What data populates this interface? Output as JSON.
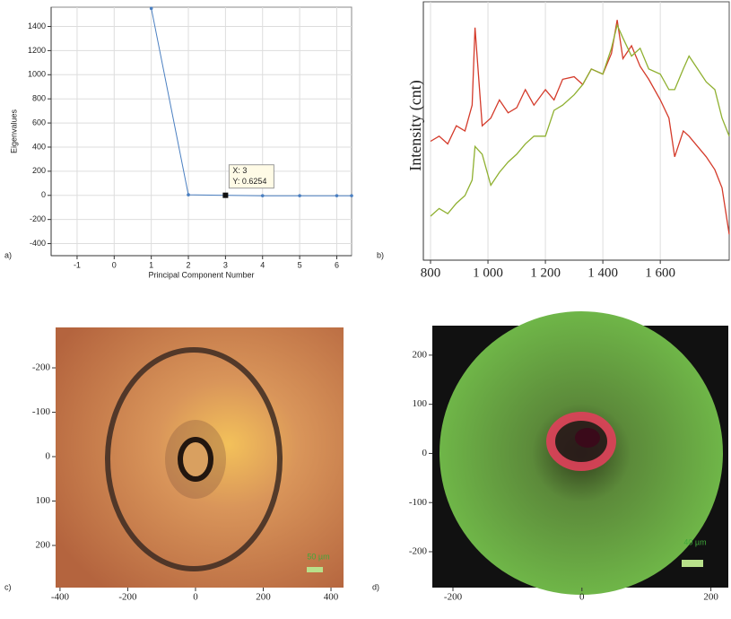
{
  "chart_data": [
    {
      "type": "line",
      "panel_label": "a)",
      "x_label": "Principal Component Number",
      "y_label": "Eigenvalues",
      "x": [
        1,
        2,
        3,
        4,
        5,
        6,
        6.4
      ],
      "series": [
        {
          "color": "#4a7fc1",
          "values": [
            1550,
            5,
            0.6254,
            -3,
            -3,
            -3,
            -3
          ]
        }
      ],
      "xlim": [
        -1.7,
        6.4
      ],
      "ylim": [
        -500,
        1560
      ],
      "xticks": [
        -1,
        0,
        1,
        2,
        3,
        4,
        5,
        6
      ],
      "yticks": [
        -400,
        -200,
        0,
        200,
        400,
        600,
        800,
        1000,
        1200,
        1400
      ],
      "grid": true,
      "markers": true,
      "tooltip": {
        "x_text": "X: 3",
        "y_text": "Y: 0.6254"
      }
    },
    {
      "type": "line",
      "panel_label": "b)",
      "y_label": "Intensity (cnt)",
      "x": [
        800,
        830,
        860,
        890,
        920,
        945,
        955,
        980,
        1010,
        1040,
        1070,
        1100,
        1130,
        1160,
        1200,
        1230,
        1260,
        1300,
        1330,
        1360,
        1400,
        1430,
        1450,
        1470,
        1500,
        1530,
        1560,
        1600,
        1630,
        1650,
        1680,
        1700,
        1730,
        1760,
        1790,
        1815,
        1840
      ],
      "series": [
        {
          "color": "#d43a2a",
          "values": [
            46,
            48,
            45,
            52,
            50,
            60,
            90,
            52,
            55,
            62,
            57,
            59,
            66,
            60,
            66,
            62,
            70,
            71,
            68,
            74,
            72,
            80,
            93,
            78,
            83,
            75,
            70,
            62,
            55,
            40,
            50,
            48,
            44,
            40,
            35,
            28,
            10
          ]
        },
        {
          "color": "#8fb030",
          "values": [
            17,
            20,
            18,
            22,
            25,
            31,
            44,
            41,
            29,
            34,
            38,
            41,
            45,
            48,
            48,
            58,
            60,
            64,
            68,
            74,
            72,
            82,
            91,
            86,
            79,
            82,
            74,
            72,
            66,
            66,
            74,
            79,
            74,
            69,
            66,
            55,
            48
          ]
        }
      ],
      "xlim": [
        775,
        1840
      ],
      "ylim": [
        0,
        100
      ],
      "xticks": [
        800,
        {
          "value": 1000,
          "label": "1 000"
        },
        {
          "value": 1200,
          "label": "1 200"
        },
        {
          "value": 1400,
          "label": "1 400"
        },
        {
          "value": 1600,
          "label": "1 600"
        }
      ],
      "grid": true,
      "markers": false
    },
    {
      "type": "image",
      "panel_label": "c)",
      "scale_bar": "50 µm",
      "xlim": [
        -413,
        437
      ],
      "ylim": [
        295,
        -291
      ],
      "xticks": [
        -400,
        -200,
        0,
        200,
        400
      ],
      "yticks": [
        -200,
        -100,
        0,
        100,
        200
      ]
    },
    {
      "type": "image",
      "panel_label": "d)",
      "scale_bar": "40 µm",
      "xlim": [
        -232,
        227
      ],
      "ylim": [
        -273,
        260
      ],
      "xticks": [
        -200,
        0,
        200
      ],
      "yticks": [
        -200,
        -100,
        0,
        100,
        200
      ]
    }
  ]
}
